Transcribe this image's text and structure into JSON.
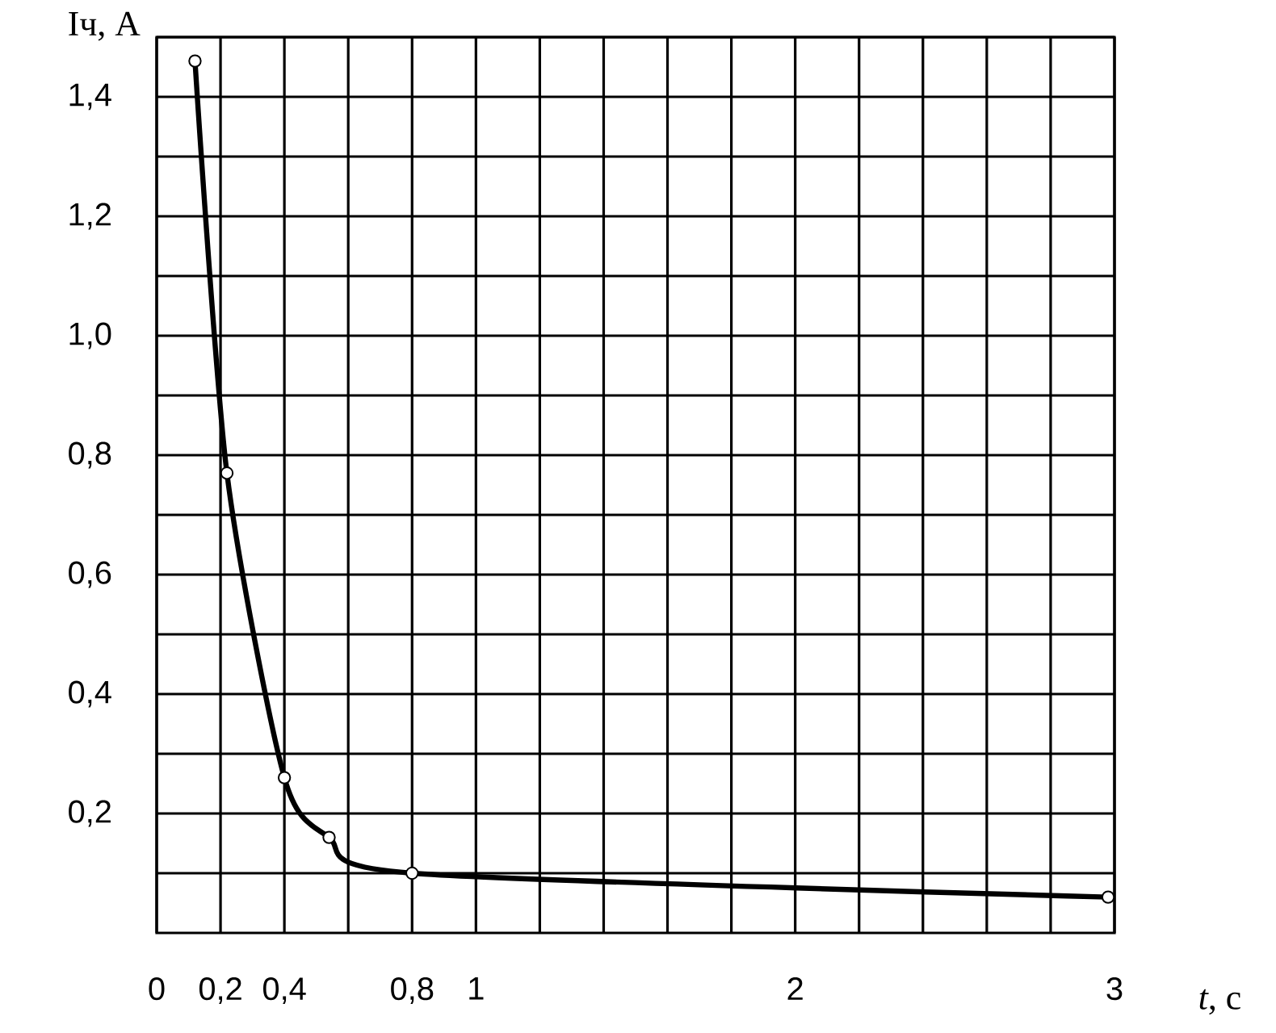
{
  "chart_data": {
    "type": "line",
    "xlabel": "*t*, с",
    "ylabel": "Iч, А",
    "x": [
      0.12,
      0.22,
      0.4,
      0.54,
      0.8,
      2.98
    ],
    "series": [
      {
        "color": "#000000",
        "values": [
          1.46,
          0.77,
          0.26,
          0.16,
          0.1,
          0.06
        ]
      }
    ],
    "xlim": [
      0,
      3
    ],
    "ylim": [
      0,
      1.5
    ],
    "xticks": [
      {
        "value": 0,
        "label": "0"
      },
      {
        "value": 0.2,
        "label": "0,2"
      },
      {
        "value": 0.4,
        "label": "0,4"
      },
      {
        "value": 0.6,
        "label": null
      },
      {
        "value": 0.8,
        "label": "0,8"
      },
      {
        "value": 1,
        "label": "1"
      },
      {
        "value": 1.2,
        "label": null
      },
      {
        "value": 1.4,
        "label": null
      },
      {
        "value": 1.6,
        "label": null
      },
      {
        "value": 1.8,
        "label": null
      },
      {
        "value": 2,
        "label": "2"
      },
      {
        "value": 2.2,
        "label": null
      },
      {
        "value": 2.4,
        "label": null
      },
      {
        "value": 2.6,
        "label": null
      },
      {
        "value": 2.8,
        "label": null
      },
      {
        "value": 3,
        "label": "3"
      }
    ],
    "yticks": [
      {
        "value": 0.1,
        "label": null
      },
      {
        "value": 0.2,
        "label": "0,2"
      },
      {
        "value": 0.3,
        "label": null
      },
      {
        "value": 0.4,
        "label": "0,4"
      },
      {
        "value": 0.5,
        "label": null
      },
      {
        "value": 0.6,
        "label": "0,6"
      },
      {
        "value": 0.7,
        "label": null
      },
      {
        "value": 0.8,
        "label": "0,8"
      },
      {
        "value": 0.9,
        "label": null
      },
      {
        "value": 1.0,
        "label": "1,0"
      },
      {
        "value": 1.1,
        "label": null
      },
      {
        "value": 1.2,
        "label": "1,2"
      },
      {
        "value": 1.3,
        "label": null
      },
      {
        "value": 1.4,
        "label": "1,4"
      },
      {
        "value": 1.5,
        "label": null
      }
    ],
    "grid": true,
    "marker": "circle",
    "line_style": "solid"
  }
}
